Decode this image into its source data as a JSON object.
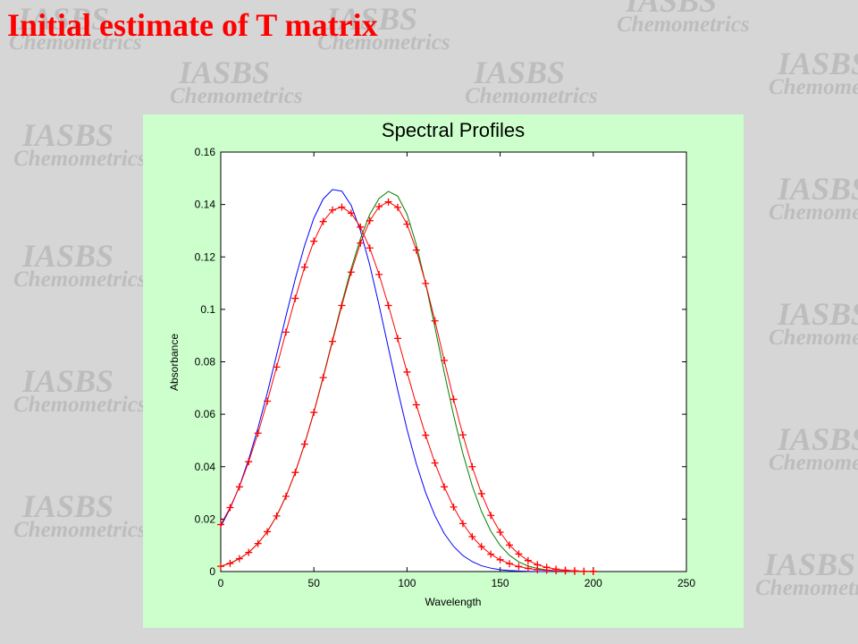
{
  "slide_title": "Initial estimate of T matrix",
  "watermark": {
    "logo": "IASBS",
    "subtitle": "Chemometrics"
  },
  "chart_data": {
    "type": "line",
    "title": "Spectral Profiles",
    "x_label": "Wavelength",
    "y_label": "Absorbance",
    "x": [
      0,
      5,
      10,
      15,
      20,
      25,
      30,
      35,
      40,
      45,
      50,
      55,
      60,
      65,
      70,
      75,
      80,
      85,
      90,
      95,
      100,
      105,
      110,
      115,
      120,
      125,
      130,
      135,
      140,
      145,
      150,
      155,
      160,
      165,
      170,
      175,
      180,
      185,
      190,
      195,
      200
    ],
    "series": [
      {
        "color": "#0000ff",
        "marker": null,
        "values": [
          0.0172,
          0.024,
          0.0325,
          0.0428,
          0.0548,
          0.0682,
          0.0827,
          0.0974,
          0.1116,
          0.1243,
          0.1348,
          0.1421,
          0.1457,
          0.1451,
          0.1397,
          0.13,
          0.1169,
          0.1016,
          0.0853,
          0.0692,
          0.0542,
          0.0411,
          0.0301,
          0.0213,
          0.0145,
          0.0096,
          0.0061,
          0.0038,
          0.0022,
          0.0013,
          0.0007,
          0.0004,
          0.0002,
          0.0001,
          0,
          0,
          0,
          0,
          0,
          0,
          0
        ]
      },
      {
        "color": "#008000",
        "marker": null,
        "values": [
          0.002,
          0.0032,
          0.0049,
          0.0073,
          0.0107,
          0.0153,
          0.0212,
          0.0287,
          0.0379,
          0.0486,
          0.0609,
          0.0743,
          0.0883,
          0.1023,
          0.1155,
          0.127,
          0.1362,
          0.1423,
          0.145,
          0.1432,
          0.1363,
          0.1247,
          0.1098,
          0.0931,
          0.0759,
          0.0596,
          0.045,
          0.0327,
          0.0229,
          0.0154,
          0.01,
          0.0062,
          0.0037,
          0.0021,
          0.0012,
          0.0006,
          0.0003,
          0.0002,
          0.0001,
          0,
          0
        ]
      },
      {
        "color": "#ff0000",
        "marker": "+",
        "values": [
          0.0179,
          0.0244,
          0.0323,
          0.0419,
          0.0528,
          0.065,
          0.078,
          0.0913,
          0.1042,
          0.1161,
          0.126,
          0.1335,
          0.1379,
          0.139,
          0.1367,
          0.1314,
          0.1234,
          0.1133,
          0.1015,
          0.0889,
          0.0761,
          0.0636,
          0.052,
          0.0414,
          0.0323,
          0.0246,
          0.0183,
          0.0133,
          0.0095,
          0.0066,
          0.0045,
          0.003,
          0.0019,
          0.0012,
          0.0007,
          0.0005,
          0.0003,
          0.0002,
          0.0001,
          0.0001,
          0
        ]
      },
      {
        "color": "#ff0000",
        "marker": "+",
        "values": [
          0.002,
          0.0031,
          0.0049,
          0.0073,
          0.0107,
          0.0152,
          0.0212,
          0.0287,
          0.0378,
          0.0486,
          0.0607,
          0.074,
          0.0878,
          0.1015,
          0.1142,
          0.1253,
          0.1338,
          0.1392,
          0.141,
          0.1389,
          0.1325,
          0.1226,
          0.1099,
          0.0956,
          0.0805,
          0.0657,
          0.0521,
          0.04,
          0.0297,
          0.0214,
          0.015,
          0.0101,
          0.0067,
          0.0042,
          0.0026,
          0.0016,
          0.0009,
          0.0005,
          0.0003,
          0.0001,
          0.0001
        ]
      }
    ],
    "xlim": [
      0,
      250
    ],
    "xticks": [
      0,
      50,
      100,
      150,
      200,
      250
    ],
    "ylim": [
      0,
      0.16
    ],
    "yticks": [
      0,
      0.02,
      0.04,
      0.06,
      0.08,
      0.1,
      0.12,
      0.14,
      0.16
    ]
  }
}
